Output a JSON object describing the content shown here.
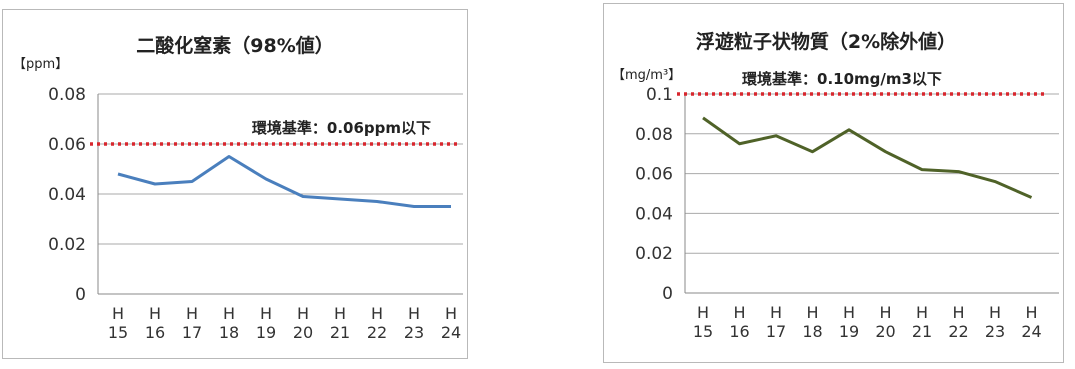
{
  "chart_data": [
    {
      "type": "line",
      "title": "二酸化窒素（98%値）",
      "unit_label": "【ppm】",
      "ylim": [
        0,
        0.08
      ],
      "yticks": [
        "0",
        "0.02",
        "0.04",
        "0.06",
        "0.08"
      ],
      "categories": [
        "H 15",
        "H 16",
        "H 17",
        "H 18",
        "H 19",
        "H 20",
        "H 21",
        "H 22",
        "H 23",
        "H 24"
      ],
      "series": [
        {
          "values": [
            0.048,
            0.044,
            0.045,
            0.055,
            0.046,
            0.039,
            0.038,
            0.037,
            0.035,
            0.035
          ],
          "color": "#4a7fbd"
        }
      ],
      "reference": {
        "value": 0.06,
        "label": "環境基準：0.06ppm以下",
        "color": "#d8262d"
      },
      "grid": true
    },
    {
      "type": "line",
      "title": "浮遊粒子状物質（2%除外値）",
      "unit_label": "【mg/m³】",
      "ylim": [
        0,
        0.1
      ],
      "yticks": [
        "0",
        "0.02",
        "0.04",
        "0.06",
        "0.08",
        "0.1"
      ],
      "categories": [
        "H 15",
        "H 16",
        "H 17",
        "H 18",
        "H 19",
        "H 20",
        "H 21",
        "H 22",
        "H 23",
        "H 24"
      ],
      "series": [
        {
          "values": [
            0.088,
            0.075,
            0.079,
            0.071,
            0.082,
            0.071,
            0.062,
            0.061,
            0.056,
            0.048
          ],
          "color": "#4f6228"
        }
      ],
      "reference": {
        "value": 0.1,
        "label": "環境基準：0.10mg/m3以下",
        "color": "#d8262d"
      },
      "grid": true
    }
  ]
}
